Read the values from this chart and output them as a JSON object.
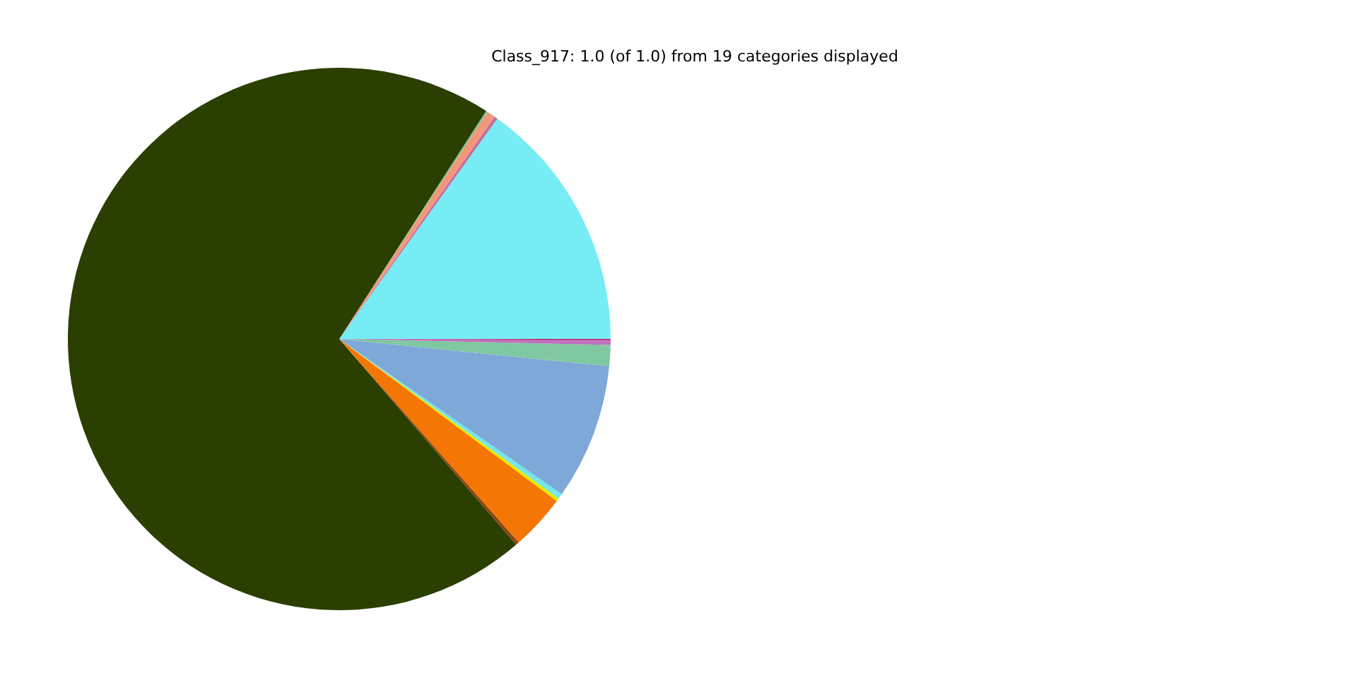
{
  "chart_data": {
    "type": "pie",
    "title": "Class_917: 1.0 (of 1.0) from 19 categories displayed",
    "categories": [
      null,
      null,
      null,
      null,
      null,
      null,
      null,
      null,
      null,
      null,
      null,
      null,
      null,
      null,
      null,
      null,
      null,
      null,
      null
    ],
    "values": [
      15.1,
      0.2,
      0.5,
      0.1,
      70.4,
      0.2,
      3.3,
      0.2,
      0.3,
      8.1,
      1.25,
      0.3,
      0.05,
      0,
      0,
      0,
      0,
      0,
      0
    ],
    "colors": [
      "#77ecf4",
      "#c070a0",
      "#f4967a",
      "#80c090",
      "#2a3f00",
      "#8b4513",
      "#f47604",
      "#e8e800",
      "#70e8f0",
      "#7da8d8",
      "#80c8a0",
      "#c070c0",
      "#c00040",
      "#999999",
      "#999999",
      "#999999",
      "#999999",
      "#999999",
      "#999999"
    ]
  }
}
